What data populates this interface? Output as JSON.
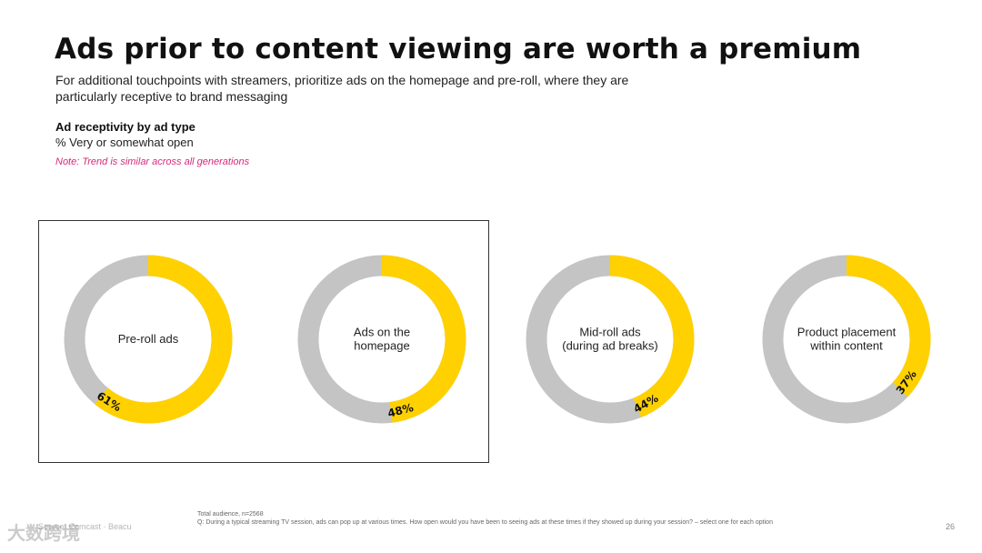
{
  "header": {
    "title": "Ads prior to content viewing are worth a premium",
    "subtitle": "For additional touchpoints with streamers, prioritize ads on the homepage and pre-roll, where they are particularly receptive to brand messaging"
  },
  "metric": {
    "title": "Ad receptivity by ad type",
    "subtitle": "% Very or somewhat open",
    "note": "Note: Trend is similar across all generations"
  },
  "footer": {
    "base": "Total audience, n=2568",
    "question": "Q: During a typical streaming TV session, ads can pop up at various times. How open would you have been to seeing ads at these times if they showed up during your session? – select one for each option",
    "page_number": "26",
    "watermark": "大数跨境",
    "source": "Source: Comcast · Beacu"
  },
  "colors": {
    "accent": "#FFD100",
    "remainder": "#C4C4C4",
    "note": "#D6297A"
  },
  "chart_data": {
    "type": "pie",
    "variant": "donut",
    "categories": [
      "Pre-roll ads",
      "Ads on the homepage",
      "Mid-roll ads (during ad breaks)",
      "Product placement within content"
    ],
    "labels": [
      [
        "Pre-roll ads"
      ],
      [
        "Ads on the",
        "homepage"
      ],
      [
        "Mid-roll ads",
        "(during ad breaks)"
      ],
      [
        "Product placement",
        "within content"
      ]
    ],
    "values": [
      61,
      48,
      44,
      37
    ],
    "value_labels": [
      "61%",
      "48%",
      "44%",
      "37%"
    ],
    "unit": "%",
    "highlighted": [
      "Pre-roll ads",
      "Ads on the homepage"
    ]
  }
}
